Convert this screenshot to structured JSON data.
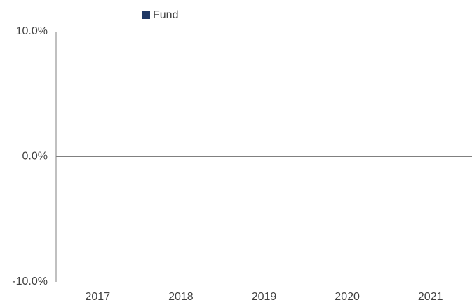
{
  "chart_data": {
    "type": "bar",
    "categories": [
      "2017",
      "2018",
      "2019",
      "2020",
      "2021"
    ],
    "series": [
      {
        "name": "Fund",
        "color": "#1f3864",
        "values": [
          0,
          0,
          0,
          0,
          0
        ]
      }
    ],
    "ylim": [
      -10,
      10
    ],
    "yticks": [
      {
        "value": 10,
        "label": "10.0%"
      },
      {
        "value": 0,
        "label": "0.0%"
      },
      {
        "value": -10,
        "label": "-10.0%"
      }
    ],
    "grid": false,
    "legend": "top"
  }
}
